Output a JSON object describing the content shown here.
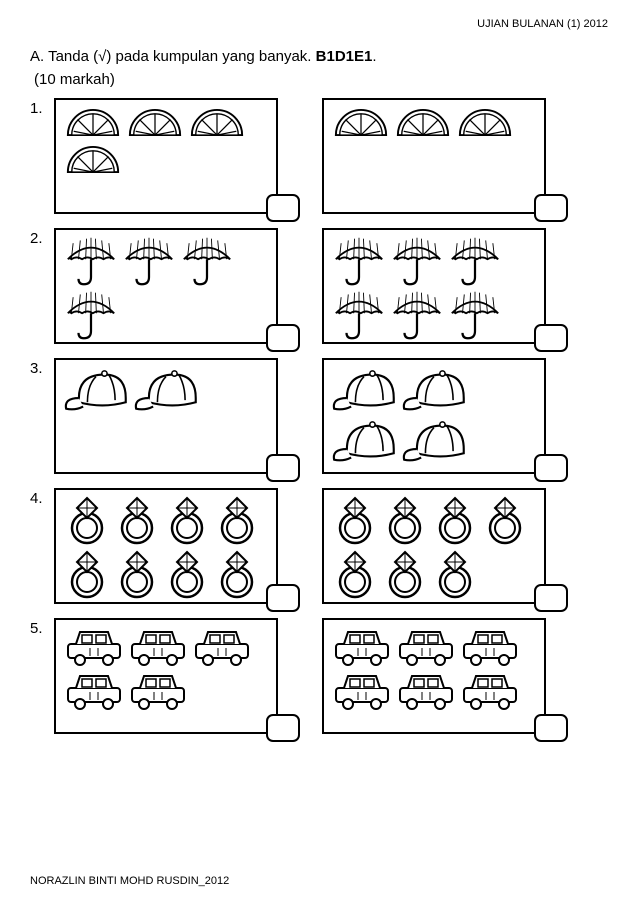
{
  "header": {
    "right": "UJIAN BULANAN (1) 2012"
  },
  "instruction": {
    "prefix": "A. Tanda (√) pada kumpulan yang banyak. ",
    "code": "B1D1E1",
    "suffix": "."
  },
  "marks": "(10 markah)",
  "footer": "NORAZLIN BINTI MOHD RUSDIN_2012",
  "colors": {
    "stroke": "#000000",
    "bg": "#ffffff"
  },
  "questions": [
    {
      "n": "1.",
      "icon": "orange",
      "left_rows": [
        3,
        1
      ],
      "right_rows": [
        3
      ],
      "size": 58
    },
    {
      "n": "2.",
      "icon": "umbrella",
      "left_rows": [
        3,
        1
      ],
      "right_rows": [
        3,
        3
      ],
      "size": 54
    },
    {
      "n": "3.",
      "icon": "cap",
      "left_rows": [
        2
      ],
      "right_rows": [
        2,
        2
      ],
      "size": 66
    },
    {
      "n": "4.",
      "icon": "ring",
      "left_rows": [
        4,
        4
      ],
      "right_rows": [
        4,
        3
      ],
      "size": 46
    },
    {
      "n": "5.",
      "icon": "car",
      "left_rows": [
        3,
        2
      ],
      "right_rows": [
        3,
        3
      ],
      "size": 60
    }
  ]
}
